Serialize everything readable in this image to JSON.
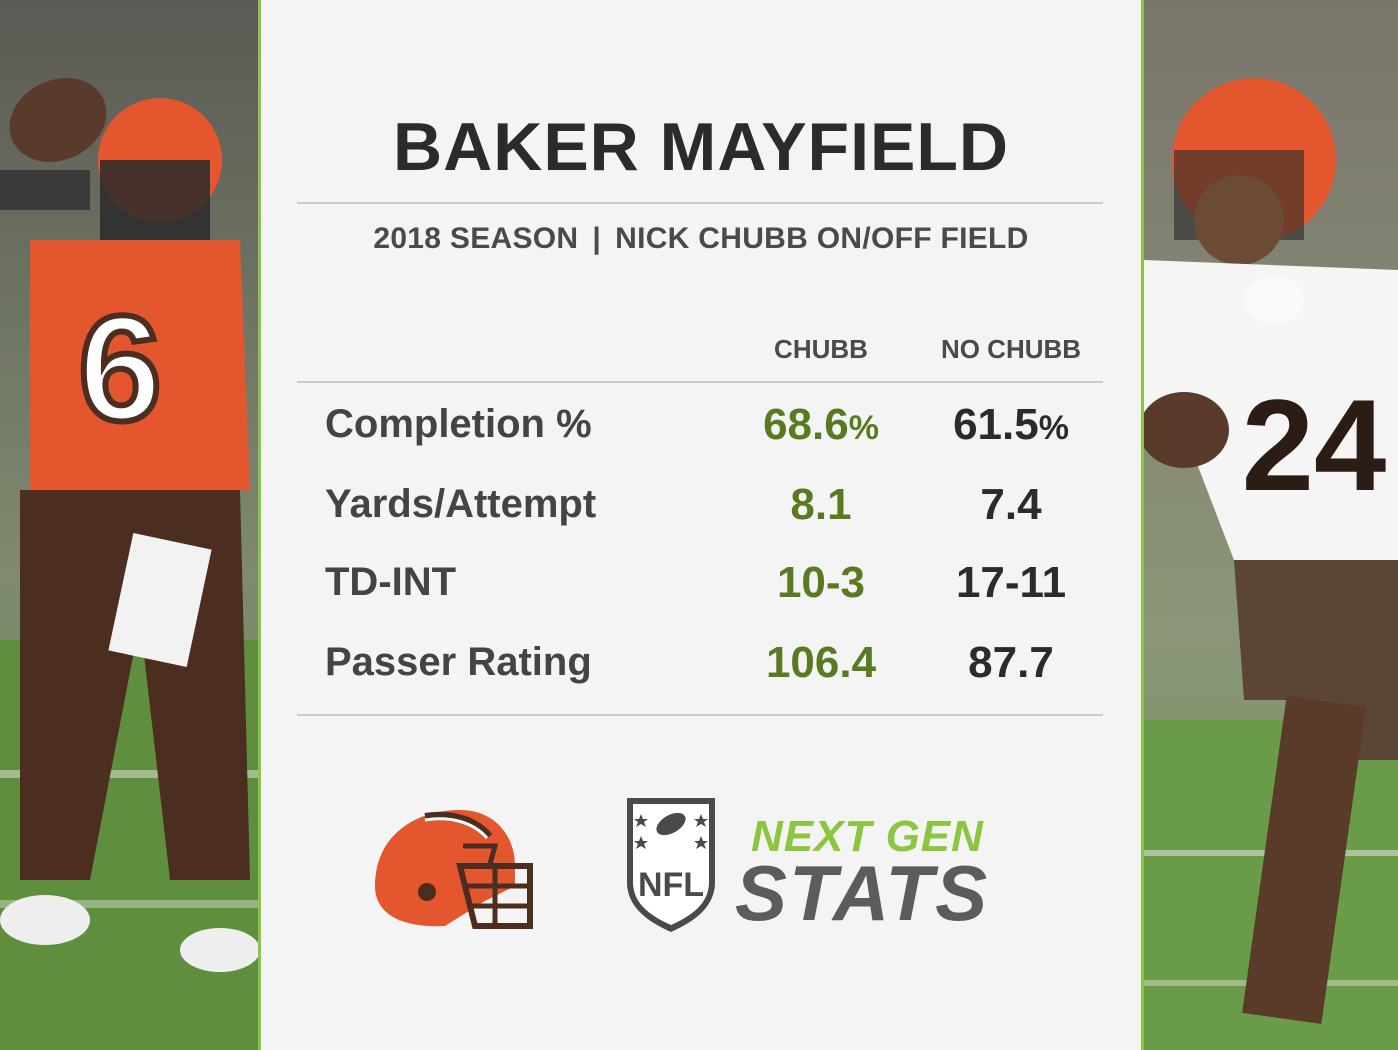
{
  "title": "BAKER MAYFIELD",
  "subtitle": {
    "season": "2018 SEASON",
    "separator": "|",
    "context": "NICK CHUBB ON/OFF FIELD"
  },
  "columns": [
    "CHUBB",
    "NO CHUBB"
  ],
  "rows": [
    {
      "label": "Completion %",
      "chubb": "68.6",
      "chubb_unit": "%",
      "no_chubb": "61.5",
      "no_chubb_unit": "%"
    },
    {
      "label": "Yards/Attempt",
      "chubb": "8.1",
      "chubb_unit": "",
      "no_chubb": "7.4",
      "no_chubb_unit": ""
    },
    {
      "label": "TD-INT",
      "chubb": "10-3",
      "chubb_unit": "",
      "no_chubb": "17-11",
      "no_chubb_unit": ""
    },
    {
      "label": "Passer Rating",
      "chubb": "106.4",
      "chubb_unit": "",
      "no_chubb": "87.7",
      "no_chubb_unit": ""
    }
  ],
  "branding": {
    "ngs_top": "NEXT GEN",
    "ngs_bottom": "STATS",
    "nfl_text": "NFL"
  },
  "colors": {
    "accent_green": "#8bc34a",
    "chubb_value": "#5a7a22",
    "browns_orange": "#e4572e",
    "browns_brown": "#4b2e20"
  }
}
